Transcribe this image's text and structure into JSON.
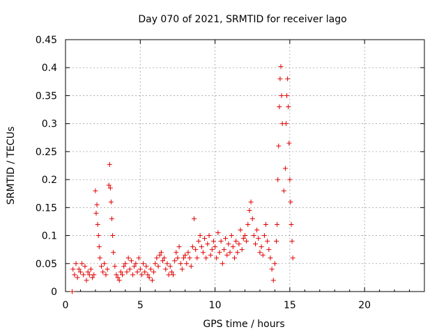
{
  "chart_data": {
    "type": "scatter",
    "title": "Day 070 of 2021, SRMTID for receiver lago",
    "xlabel": "GPS time / hours",
    "ylabel": "SRMTID / TECUs",
    "xlim": [
      0,
      24
    ],
    "ylim": [
      0,
      0.45
    ],
    "x_ticks": [
      "0",
      "5",
      "10",
      "15",
      "20"
    ],
    "y_ticks": [
      "0",
      "0.05",
      "0.1",
      "0.15",
      "0.2",
      "0.25",
      "0.3",
      "0.35",
      "0.4",
      "0.45"
    ],
    "grid": true,
    "series": [
      {
        "name": "SRMTID",
        "marker": "plus",
        "color": "#e00000",
        "points": [
          [
            0.45,
            0.0
          ],
          [
            0.5,
            0.04
          ],
          [
            0.6,
            0.03
          ],
          [
            0.7,
            0.05
          ],
          [
            0.8,
            0.025
          ],
          [
            0.9,
            0.04
          ],
          [
            1.0,
            0.035
          ],
          [
            1.1,
            0.05
          ],
          [
            1.2,
            0.03
          ],
          [
            1.3,
            0.045
          ],
          [
            1.4,
            0.02
          ],
          [
            1.5,
            0.035
          ],
          [
            1.6,
            0.03
          ],
          [
            1.7,
            0.04
          ],
          [
            1.8,
            0.025
          ],
          [
            1.9,
            0.03
          ],
          [
            2.0,
            0.18
          ],
          [
            2.05,
            0.14
          ],
          [
            2.1,
            0.155
          ],
          [
            2.15,
            0.12
          ],
          [
            2.2,
            0.1
          ],
          [
            2.25,
            0.08
          ],
          [
            2.3,
            0.06
          ],
          [
            2.4,
            0.045
          ],
          [
            2.5,
            0.035
          ],
          [
            2.6,
            0.05
          ],
          [
            2.7,
            0.03
          ],
          [
            2.8,
            0.04
          ],
          [
            2.9,
            0.19
          ],
          [
            2.95,
            0.227
          ],
          [
            3.0,
            0.185
          ],
          [
            3.05,
            0.16
          ],
          [
            3.1,
            0.13
          ],
          [
            3.15,
            0.1
          ],
          [
            3.2,
            0.07
          ],
          [
            3.3,
            0.045
          ],
          [
            3.4,
            0.03
          ],
          [
            3.5,
            0.025
          ],
          [
            3.6,
            0.02
          ],
          [
            3.7,
            0.035
          ],
          [
            3.8,
            0.03
          ],
          [
            3.9,
            0.045
          ],
          [
            4.0,
            0.05
          ],
          [
            4.1,
            0.035
          ],
          [
            4.2,
            0.06
          ],
          [
            4.3,
            0.04
          ],
          [
            4.4,
            0.055
          ],
          [
            4.5,
            0.03
          ],
          [
            4.6,
            0.045
          ],
          [
            4.7,
            0.05
          ],
          [
            4.8,
            0.035
          ],
          [
            4.9,
            0.06
          ],
          [
            5.0,
            0.04
          ],
          [
            5.1,
            0.03
          ],
          [
            5.2,
            0.05
          ],
          [
            5.3,
            0.035
          ],
          [
            5.4,
            0.045
          ],
          [
            5.5,
            0.03
          ],
          [
            5.6,
            0.025
          ],
          [
            5.7,
            0.04
          ],
          [
            5.8,
            0.02
          ],
          [
            5.9,
            0.035
          ],
          [
            6.0,
            0.05
          ],
          [
            6.1,
            0.06
          ],
          [
            6.2,
            0.045
          ],
          [
            6.3,
            0.065
          ],
          [
            6.4,
            0.07
          ],
          [
            6.5,
            0.055
          ],
          [
            6.6,
            0.06
          ],
          [
            6.7,
            0.04
          ],
          [
            6.8,
            0.05
          ],
          [
            6.9,
            0.03
          ],
          [
            7.0,
            0.045
          ],
          [
            7.1,
            0.035
          ],
          [
            7.2,
            0.03
          ],
          [
            7.3,
            0.055
          ],
          [
            7.4,
            0.07
          ],
          [
            7.5,
            0.06
          ],
          [
            7.6,
            0.08
          ],
          [
            7.7,
            0.05
          ],
          [
            7.8,
            0.04
          ],
          [
            7.9,
            0.06
          ],
          [
            8.0,
            0.065
          ],
          [
            8.1,
            0.05
          ],
          [
            8.2,
            0.07
          ],
          [
            8.3,
            0.06
          ],
          [
            8.4,
            0.045
          ],
          [
            8.5,
            0.08
          ],
          [
            8.6,
            0.13
          ],
          [
            8.7,
            0.075
          ],
          [
            8.8,
            0.06
          ],
          [
            8.9,
            0.09
          ],
          [
            9.0,
            0.1
          ],
          [
            9.1,
            0.08
          ],
          [
            9.2,
            0.07
          ],
          [
            9.3,
            0.095
          ],
          [
            9.4,
            0.06
          ],
          [
            9.5,
            0.085
          ],
          [
            9.6,
            0.1
          ],
          [
            9.7,
            0.065
          ],
          [
            9.8,
            0.075
          ],
          [
            9.9,
            0.09
          ],
          [
            10.0,
            0.08
          ],
          [
            10.1,
            0.06
          ],
          [
            10.2,
            0.105
          ],
          [
            10.3,
            0.07
          ],
          [
            10.4,
            0.09
          ],
          [
            10.5,
            0.05
          ],
          [
            10.6,
            0.075
          ],
          [
            10.7,
            0.095
          ],
          [
            10.8,
            0.065
          ],
          [
            10.9,
            0.085
          ],
          [
            11.0,
            0.07
          ],
          [
            11.1,
            0.1
          ],
          [
            11.2,
            0.08
          ],
          [
            11.3,
            0.06
          ],
          [
            11.4,
            0.09
          ],
          [
            11.5,
            0.07
          ],
          [
            11.6,
            0.085
          ],
          [
            11.7,
            0.11
          ],
          [
            11.8,
            0.075
          ],
          [
            11.9,
            0.095
          ],
          [
            12.0,
            0.1
          ],
          [
            12.1,
            0.09
          ],
          [
            12.2,
            0.12
          ],
          [
            12.3,
            0.145
          ],
          [
            12.4,
            0.16
          ],
          [
            12.5,
            0.13
          ],
          [
            12.6,
            0.1
          ],
          [
            12.7,
            0.085
          ],
          [
            12.8,
            0.11
          ],
          [
            12.9,
            0.095
          ],
          [
            13.0,
            0.07
          ],
          [
            13.1,
            0.08
          ],
          [
            13.2,
            0.065
          ],
          [
            13.3,
            0.1
          ],
          [
            13.4,
            0.12
          ],
          [
            13.5,
            0.09
          ],
          [
            13.6,
            0.075
          ],
          [
            13.7,
            0.06
          ],
          [
            13.8,
            0.04
          ],
          [
            13.9,
            0.02
          ],
          [
            14.0,
            0.05
          ],
          [
            14.1,
            0.09
          ],
          [
            14.15,
            0.12
          ],
          [
            14.2,
            0.2
          ],
          [
            14.25,
            0.26
          ],
          [
            14.3,
            0.33
          ],
          [
            14.35,
            0.38
          ],
          [
            14.4,
            0.402
          ],
          [
            14.45,
            0.35
          ],
          [
            14.5,
            0.3
          ],
          [
            14.6,
            0.18
          ],
          [
            14.7,
            0.22
          ],
          [
            14.75,
            0.3
          ],
          [
            14.8,
            0.35
          ],
          [
            14.85,
            0.38
          ],
          [
            14.9,
            0.33
          ],
          [
            14.95,
            0.265
          ],
          [
            15.0,
            0.2
          ],
          [
            15.05,
            0.16
          ],
          [
            15.1,
            0.12
          ],
          [
            15.15,
            0.09
          ],
          [
            15.2,
            0.06
          ]
        ]
      }
    ]
  }
}
